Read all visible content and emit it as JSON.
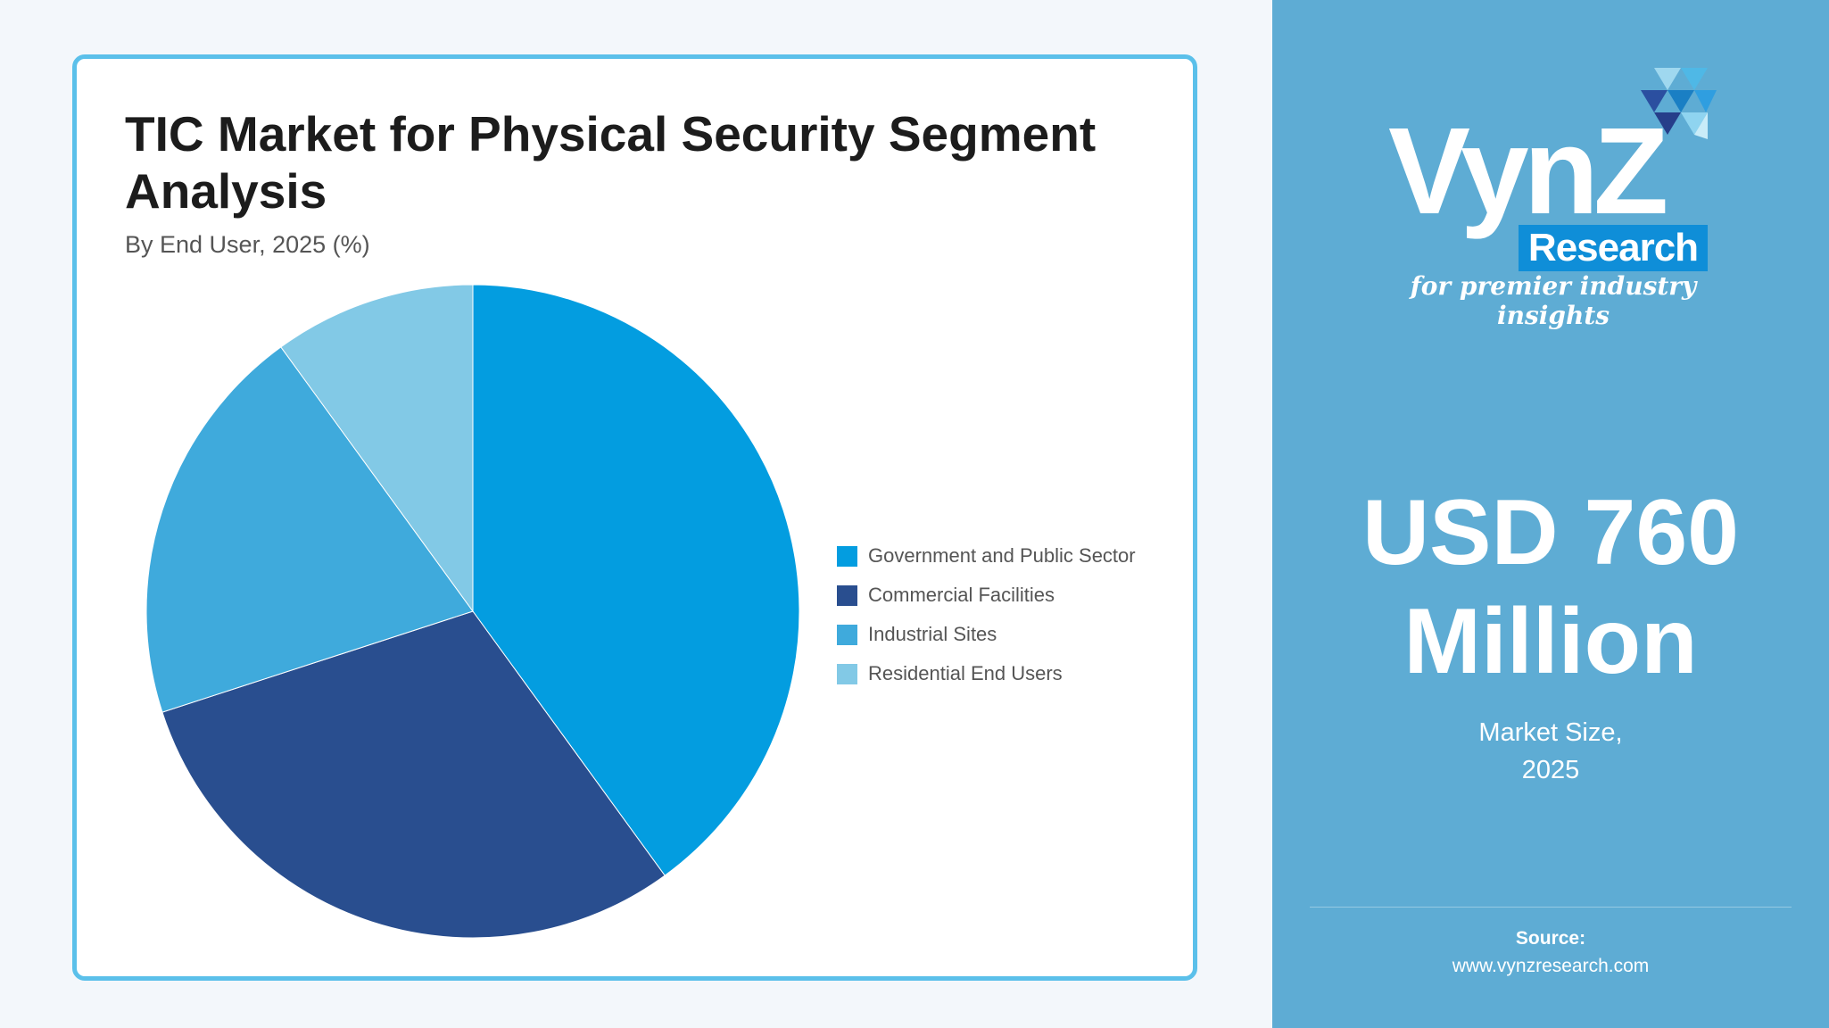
{
  "chart_data": {
    "type": "pie",
    "title": "TIC Market for Physical Security Segment Analysis",
    "subtitle": "By End User, 2025 (%)",
    "categories": [
      "Government and Public Sector",
      "Commercial Facilities",
      "Industrial Sites",
      "Residential End Users"
    ],
    "values": [
      40,
      30,
      20,
      10
    ],
    "colors": [
      "#039de0",
      "#294e8f",
      "#3faadc",
      "#82c9e6"
    ],
    "legend_position": "right"
  },
  "panel": {
    "logo": {
      "word": "VynZ",
      "badge": "Research",
      "tagline": "for premier industry insights",
      "accent": "#0f8ed8"
    },
    "headline_line1": "USD 760",
    "headline_line2": "Million",
    "caption_line1": "Market Size,",
    "caption_line2": "2025",
    "source_label": "Source:",
    "source_url": "www.vynzresearch.com",
    "background": "#5eacd4"
  }
}
